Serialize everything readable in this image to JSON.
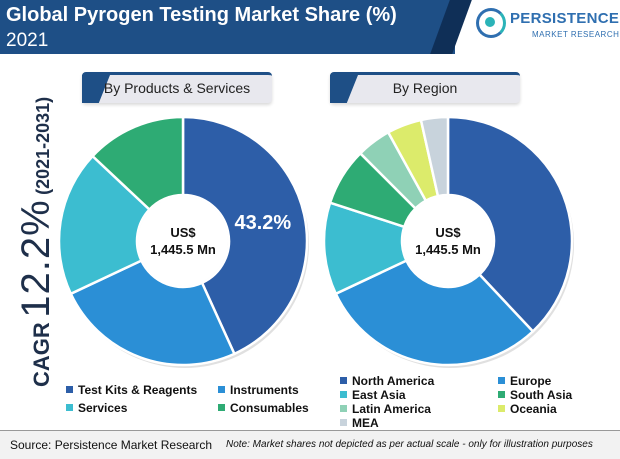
{
  "header": {
    "title": "Global Pyrogen Testing Market Share (%)",
    "year": "2021"
  },
  "logo": {
    "name": "PERSISTENCE",
    "sub": "MARKET RESEARCH"
  },
  "cagr": {
    "label": "CAGR",
    "value": "12.2%",
    "period": "(2021-2031)"
  },
  "colors": {
    "header": "#1e4f86",
    "dark_blue": "#2d5ea8",
    "blue": "#2b8fd6",
    "cyan": "#3cbdd0",
    "green": "#2eab74",
    "light_green": "#8fd1b6",
    "yellow_green": "#dceb6b",
    "gray": "#c8d3dc"
  },
  "chart_data": [
    {
      "type": "pie",
      "title": "By Products & Services",
      "center_line1": "US$",
      "center_line2": "1,445.5 Mn",
      "categories": [
        "Test Kits & Reagents",
        "Instruments",
        "Services",
        "Consumables"
      ],
      "values": [
        43.2,
        24.8,
        19.0,
        13.0
      ],
      "colors": [
        "#2d5ea8",
        "#2b8fd6",
        "#3cbdd0",
        "#2eab74"
      ],
      "data_labels": [
        "43.2%",
        "",
        "",
        ""
      ],
      "legend_position": "bottom"
    },
    {
      "type": "pie",
      "title": "By Region",
      "center_line1": "US$",
      "center_line2": "1,445.5 Mn",
      "categories": [
        "North America",
        "Europe",
        "East Asia",
        "South Asia",
        "Latin America",
        "Oceania",
        "MEA"
      ],
      "values": [
        38.0,
        30.0,
        12.0,
        7.5,
        4.5,
        4.5,
        3.5
      ],
      "colors": [
        "#2d5ea8",
        "#2b8fd6",
        "#3cbdd0",
        "#2eab74",
        "#8fd1b6",
        "#dceb6b",
        "#c8d3dc"
      ],
      "legend_position": "bottom"
    }
  ],
  "footer": {
    "source": "Source: Persistence Market Research",
    "note": "Note: Market shares not depicted as per actual scale - only for illustration purposes"
  }
}
